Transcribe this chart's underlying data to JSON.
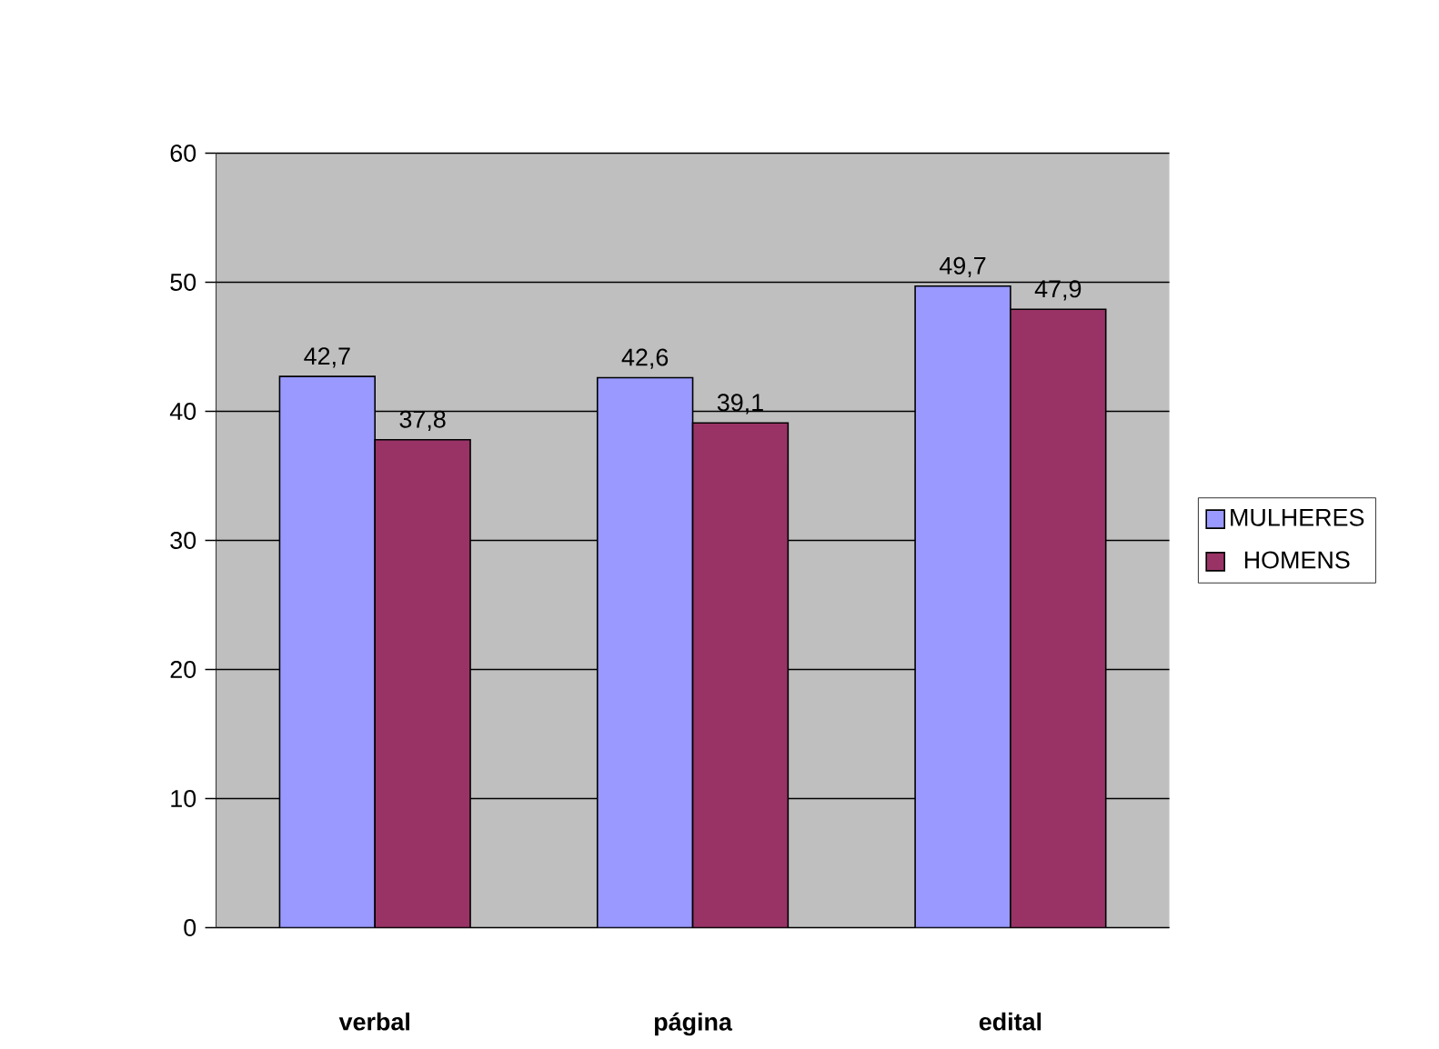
{
  "chart_data": {
    "type": "bar",
    "categories": [
      "verbal",
      "página",
      "edital"
    ],
    "series": [
      {
        "name": "MULHERES",
        "color": "#9999ff",
        "values": [
          42.7,
          42.6,
          49.7
        ],
        "value_labels": [
          "42,7",
          "42,6",
          "49,7"
        ]
      },
      {
        "name": "HOMENS",
        "color": "#993366",
        "values": [
          37.8,
          39.1,
          47.9
        ],
        "value_labels": [
          "37,8",
          "39,1",
          "47,9"
        ]
      }
    ],
    "ylim": [
      0,
      60
    ],
    "yticks": [
      0,
      10,
      20,
      30,
      40,
      50,
      60
    ],
    "grid": "y",
    "legend": "right"
  }
}
